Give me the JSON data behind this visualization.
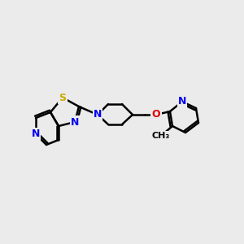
{
  "bg_color": "#ebebeb",
  "bond_color": "#000000",
  "bond_width": 1.8,
  "atom_colors": {
    "N": "#0000ee",
    "S": "#ccaa00",
    "O": "#dd0000",
    "C": "#000000"
  },
  "font_size": 9,
  "font_size_methyl": 8
}
